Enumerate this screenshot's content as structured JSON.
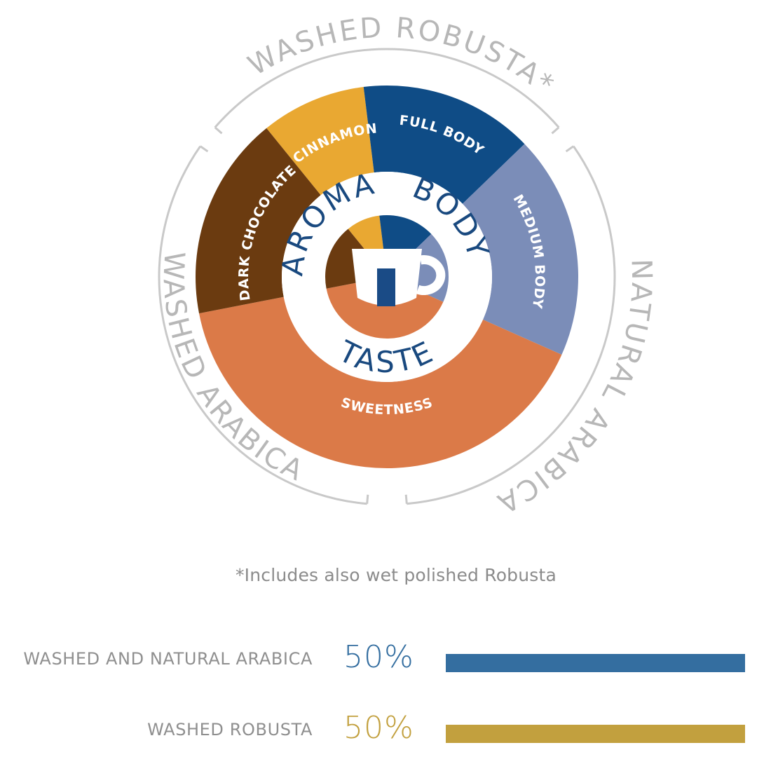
{
  "chart_data": {
    "type": "donut",
    "hub_labels": [
      "AROMA",
      "BODY",
      "TASTE"
    ],
    "segments": [
      {
        "label": "CINNAMON",
        "group": "AROMA",
        "color": "#e9a832",
        "start_deg": -39,
        "end_deg": -7
      },
      {
        "label": "FULL BODY",
        "group": "BODY",
        "color": "#0f4c86",
        "start_deg": -7,
        "end_deg": 46
      },
      {
        "label": "MEDIUM BODY",
        "group": "BODY",
        "color": "#7b8db8",
        "start_deg": 46,
        "end_deg": 114
      },
      {
        "label": "SWEETNESS",
        "group": "TASTE",
        "color": "#db7a48",
        "start_deg": 114,
        "end_deg": 259
      },
      {
        "label": "DARK CHOCOLATE",
        "group": "AROMA",
        "color": "#6b3b10",
        "start_deg": 259,
        "end_deg": 321
      }
    ],
    "origins": [
      {
        "label": "WASHED ROBUSTA*",
        "start_deg": -52,
        "end_deg": 52
      },
      {
        "label": "NATURAL ARABICA",
        "start_deg": 52,
        "end_deg": 178
      },
      {
        "label": "WASHED ARABICA",
        "start_deg": 182,
        "end_deg": 308
      }
    ],
    "footnote": "*Includes also wet polished Robusta",
    "composition": [
      {
        "label": "WASHED AND NATURAL ARABICA",
        "value": 50,
        "display": "50%",
        "color": "#346ea0"
      },
      {
        "label": "WASHED ROBUSTA",
        "value": 50,
        "display": "50%",
        "color": "#c2a03e"
      }
    ]
  },
  "colors": {
    "ring_line": "#c9c9c9",
    "origin_text": "#b7b7b7",
    "hub_text": "#19497f",
    "cup": "#ffffff",
    "cup_accent": "#1a4b86"
  },
  "icons": {
    "center": "coffee-cup-icon"
  }
}
